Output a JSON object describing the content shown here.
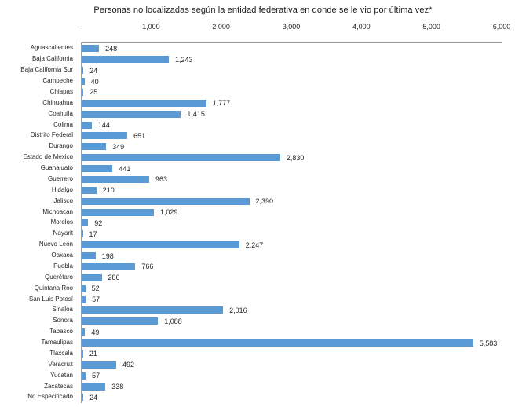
{
  "chart_data": {
    "type": "bar",
    "orientation": "horizontal",
    "title": "Personas no localizadas según la entidad federativa en donde se le vio por última vez*",
    "categories": [
      "Aguascalientes",
      "Baja California",
      "Baja California Sur",
      "Campeche",
      "Chiapas",
      "Chihuahua",
      "Coahuila",
      "Colima",
      "Distrito Federal",
      "Durango",
      "Estado de Mexico",
      "Guanajuato",
      "Guerrero",
      "Hidalgo",
      "Jalisco",
      "Michoacán",
      "Morelos",
      "Nayarit",
      "Nuevo León",
      "Oaxaca",
      "Puebla",
      "Querétaro",
      "Quintana Roo",
      "San Luis Potosí",
      "Sinaloa",
      "Sonora",
      "Tabasco",
      "Tamaulipas",
      "Tlaxcala",
      "Veracruz",
      "Yucatán",
      "Zacatecas",
      "No Especificado"
    ],
    "values": [
      248,
      1243,
      24,
      40,
      25,
      1777,
      1415,
      144,
      651,
      349,
      2830,
      441,
      963,
      210,
      2390,
      1029,
      92,
      17,
      2247,
      198,
      766,
      286,
      52,
      57,
      2016,
      1088,
      49,
      5583,
      21,
      492,
      57,
      338,
      24
    ],
    "value_labels": [
      "248",
      "1,243",
      "24",
      "40",
      "25",
      "1,777",
      "1,415",
      "144",
      "651",
      "349",
      "2,830",
      "441",
      "963",
      "210",
      "2,390",
      "1,029",
      "92",
      "17",
      "2,247",
      "198",
      "766",
      "286",
      "52",
      "57",
      "2,016",
      "1,088",
      "49",
      "5,583",
      "21",
      "492",
      "57",
      "338",
      "24"
    ],
    "x_ticks": [
      "-",
      "1,000",
      "2,000",
      "3,000",
      "4,000",
      "5,000",
      "6,000"
    ],
    "xlim": [
      0,
      6000
    ],
    "xlabel": "",
    "ylabel": "",
    "grid": "off",
    "legend": "none",
    "bar_color": "#5B9BD5",
    "axis_line_color": "#9e9e9e",
    "text_color": "#262626"
  }
}
